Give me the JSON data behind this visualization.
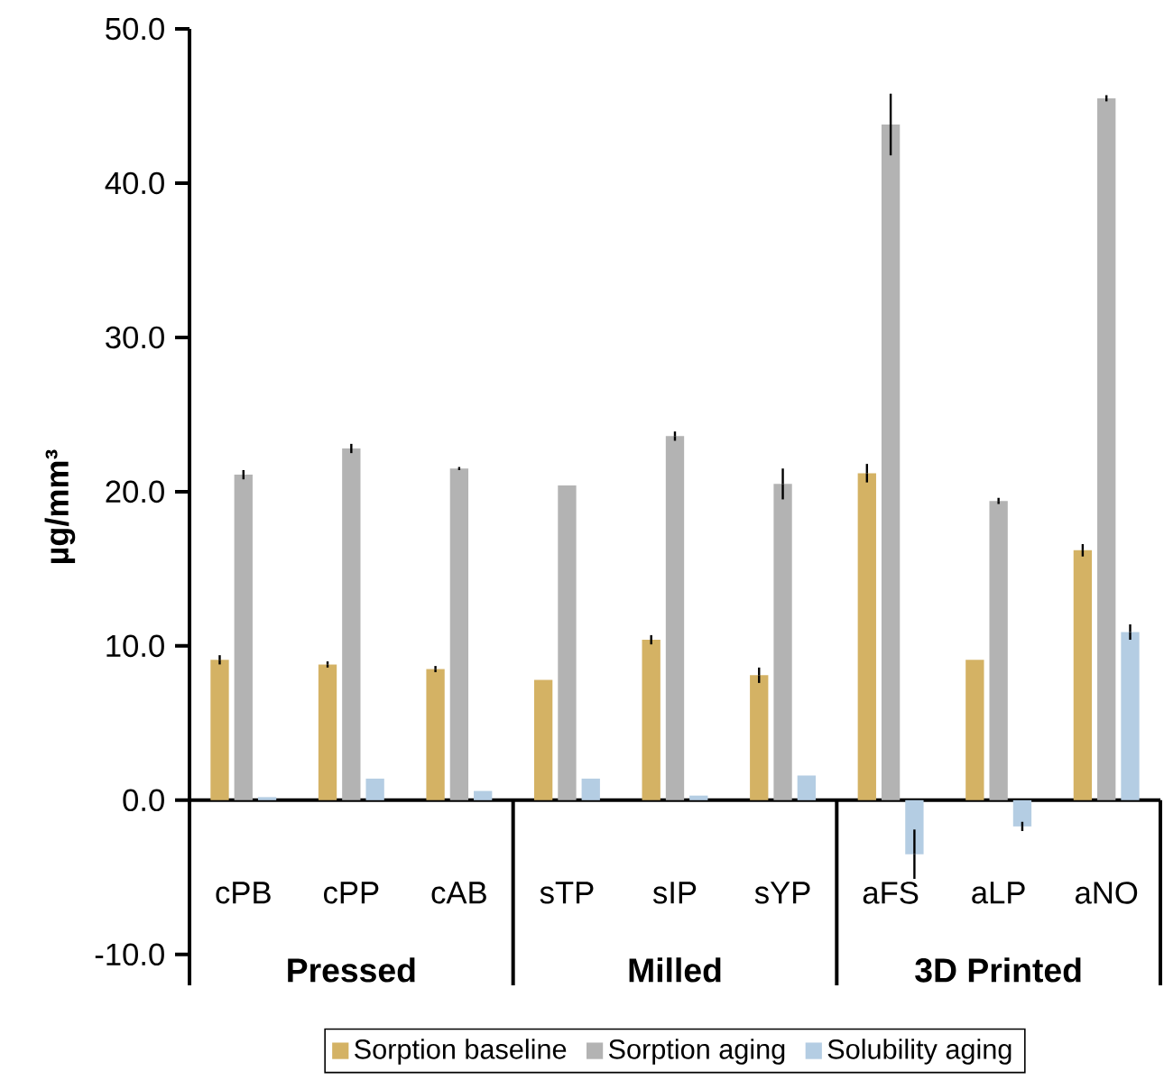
{
  "chart_data": {
    "type": "bar",
    "ylabel": "µg/mm³",
    "categories": [
      "cPB",
      "cPP",
      "cAB",
      "sTP",
      "sIP",
      "sYP",
      "aFS",
      "aLP",
      "aNO"
    ],
    "series": [
      {
        "name": "Sorption baseline",
        "color": "#d4b264",
        "values": [
          9.1,
          8.8,
          8.5,
          7.8,
          10.4,
          8.1,
          21.2,
          9.1,
          16.2
        ],
        "errors": [
          0.3,
          0.2,
          0.2,
          null,
          0.3,
          0.5,
          0.6,
          null,
          0.4
        ]
      },
      {
        "name": "Sorption aging",
        "color": "#b3b3b3",
        "values": [
          21.1,
          22.8,
          21.5,
          20.4,
          23.6,
          20.5,
          43.8,
          19.4,
          45.5
        ],
        "errors": [
          0.3,
          0.3,
          0.1,
          null,
          0.3,
          1.0,
          2.0,
          0.2,
          0.2
        ]
      },
      {
        "name": "Solubility aging",
        "color": "#b4cde3",
        "values": [
          0.2,
          1.4,
          0.6,
          1.4,
          0.3,
          1.6,
          -3.5,
          -1.7,
          10.9
        ],
        "errors": [
          null,
          null,
          null,
          null,
          null,
          null,
          1.6,
          0.3,
          0.5
        ]
      }
    ],
    "ylim": [
      -12,
      50
    ],
    "yticks": [
      {
        "value": -10,
        "label": "-10.0"
      },
      {
        "value": 0,
        "label": "0.0"
      },
      {
        "value": 10,
        "label": "10.0"
      },
      {
        "value": 20,
        "label": "20.0"
      },
      {
        "value": 30,
        "label": "30.0"
      },
      {
        "value": 40,
        "label": "40.0"
      },
      {
        "value": 50,
        "label": "50.0"
      }
    ],
    "annotations": [
      "Pressed",
      "Milled",
      "3D Printed"
    ],
    "legend": "bottom"
  }
}
